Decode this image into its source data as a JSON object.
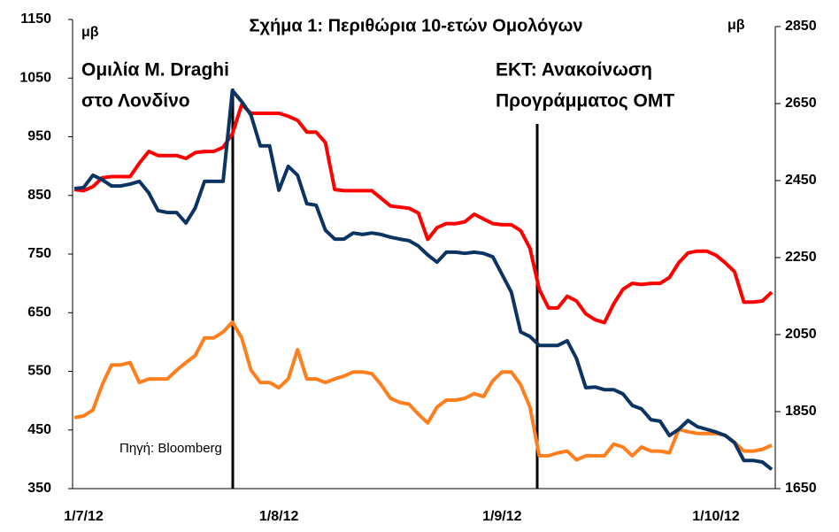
{
  "chart_data": {
    "type": "line",
    "title": "Σχήμα 1: Περιθώρια 10-ετών Ομολόγων",
    "ylabel": "μβ",
    "y2label": "μβ",
    "annotations": [
      "Ομιλία Μ. Draghi",
      "στο Λονδίνο",
      "ΕΚΤ:  Ανακοίνωση",
      "Προγράμματος OMT"
    ],
    "source": "Πηγή: Bloomberg",
    "categories": [
      null,
      "1/7/12",
      null,
      null,
      null,
      null,
      null,
      null,
      null,
      null,
      null,
      null,
      null,
      null,
      null,
      null,
      null,
      null,
      null,
      null,
      null,
      null,
      "1/8/12",
      null,
      null,
      null,
      null,
      null,
      null,
      null,
      null,
      null,
      null,
      null,
      null,
      null,
      null,
      null,
      null,
      null,
      null,
      null,
      null,
      null,
      null,
      null,
      "1/9/12",
      null,
      null,
      null,
      null,
      null,
      null,
      null,
      null,
      null,
      null,
      null,
      null,
      null,
      null,
      null,
      null,
      null,
      null,
      null,
      null,
      null,
      null,
      "1/10/12",
      null,
      null,
      null,
      null,
      null,
      null
    ],
    "ylim": [
      350,
      1150
    ],
    "yticks": [
      350,
      450,
      550,
      650,
      750,
      850,
      950,
      1050,
      1150
    ],
    "y2lim": [
      1650,
      2850
    ],
    "y2ticks": [
      1650,
      1850,
      2050,
      2250,
      2450,
      2650,
      2850
    ],
    "series": [
      {
        "color": "#ff0000",
        "values": [
          860,
          858,
          865,
          880,
          882,
          882,
          882,
          905,
          925,
          918,
          918,
          918,
          913,
          923,
          925,
          925,
          932,
          955,
          1005,
          990,
          990,
          990,
          990,
          985,
          978,
          958,
          958,
          940,
          860,
          858,
          858,
          858,
          858,
          845,
          832,
          830,
          828,
          820,
          775,
          795,
          802,
          802,
          805,
          818,
          810,
          802,
          800,
          800,
          790,
          760,
          690,
          658,
          658,
          678,
          670,
          648,
          638,
          633,
          665,
          690,
          700,
          698,
          700,
          700,
          710,
          735,
          752,
          755,
          755,
          748,
          735,
          720,
          668,
          668,
          670,
          685
        ]
      },
      {
        "color": "#ff7f1f",
        "values": [
          471,
          474,
          484,
          527,
          561,
          561,
          565,
          531,
          537,
          537,
          537,
          552,
          565,
          577,
          607,
          607,
          617,
          634,
          607,
          552,
          531,
          531,
          522,
          537,
          587,
          537,
          537,
          531,
          537,
          542,
          549,
          549,
          546,
          527,
          504,
          497,
          494,
          477,
          462,
          489,
          501,
          501,
          504,
          512,
          507,
          534,
          549,
          549,
          527,
          489,
          406,
          406,
          411,
          414,
          399,
          406,
          406,
          406,
          426,
          421,
          406,
          421,
          414,
          414,
          411,
          451,
          447,
          444,
          444,
          444,
          441,
          429,
          414,
          414,
          417,
          424
        ]
      },
      {
        "color": "#0b3462",
        "axis": "y2",
        "values": [
          2429,
          2432,
          2464,
          2452,
          2436,
          2436,
          2441,
          2448,
          2418,
          2372,
          2367,
          2367,
          2340,
          2379,
          2448,
          2448,
          2448,
          2684,
          2655,
          2620,
          2540,
          2540,
          2425,
          2487,
          2464,
          2390,
          2386,
          2321,
          2298,
          2298,
          2314,
          2310,
          2314,
          2310,
          2303,
          2298,
          2294,
          2280,
          2257,
          2238,
          2264,
          2264,
          2261,
          2264,
          2261,
          2252,
          2206,
          2160,
          2057,
          2045,
          2022,
          2022,
          2022,
          2034,
          1988,
          1912,
          1914,
          1907,
          1907,
          1896,
          1866,
          1857,
          1829,
          1825,
          1788,
          1804,
          1827,
          1811,
          1804,
          1797,
          1788,
          1769,
          1723,
          1723,
          1719,
          1700
        ]
      }
    ]
  }
}
